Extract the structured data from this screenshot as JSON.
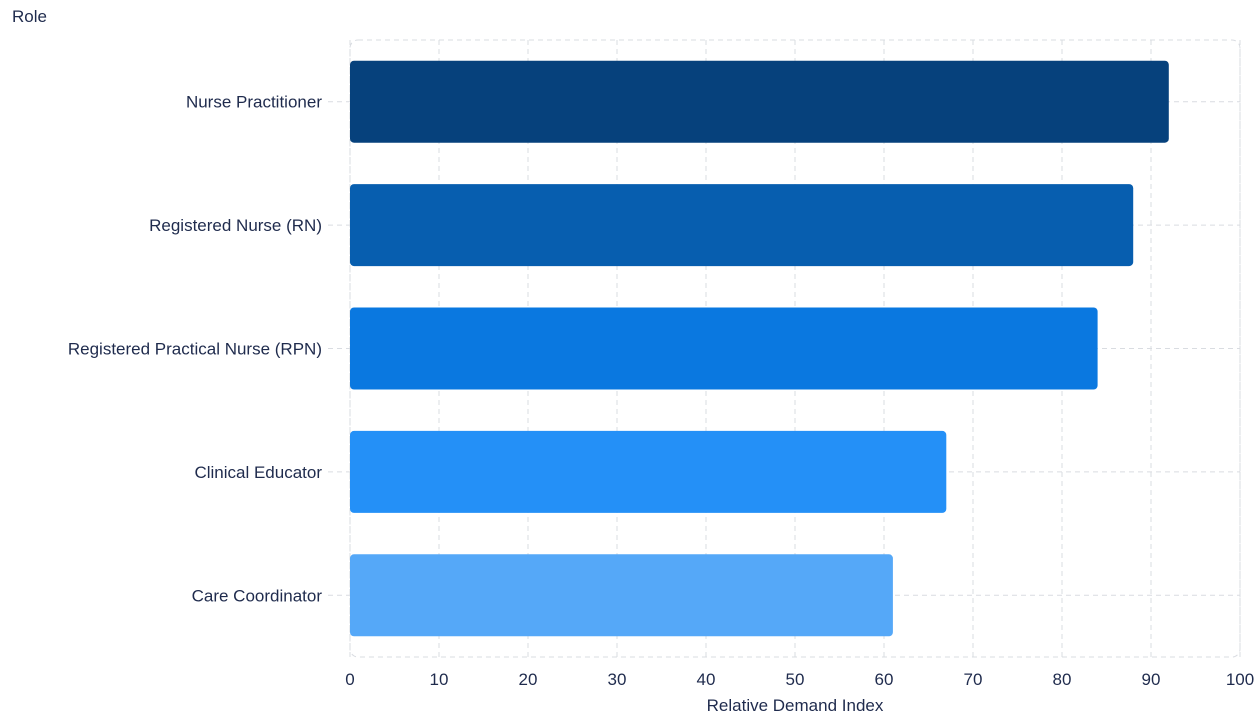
{
  "chart_data": {
    "type": "bar",
    "orientation": "horizontal",
    "categories": [
      "Nurse Practitioner",
      "Registered Nurse (RN)",
      "Registered Practical Nurse (RPN)",
      "Clinical Educator",
      "Care Coordinator"
    ],
    "values": [
      92,
      88,
      84,
      67,
      61
    ],
    "bar_colors": [
      "#06417c",
      "#075eaf",
      "#0a78e0",
      "#2490f7",
      "#55a8f8"
    ],
    "xlabel": "Relative Demand Index",
    "ylabel": "Role",
    "xlim": [
      0,
      100
    ],
    "xticks": [
      0,
      10,
      20,
      30,
      40,
      50,
      60,
      70,
      80,
      90,
      100
    ],
    "grid": true
  },
  "colors": {
    "text": "#1f2b4d",
    "grid": "#d9dce1"
  }
}
